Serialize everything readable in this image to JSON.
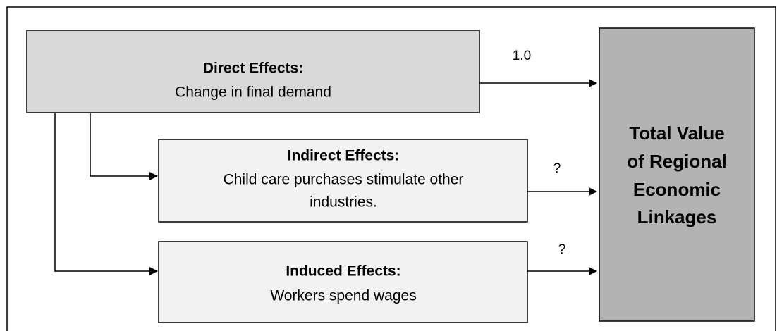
{
  "nodes": [
    {
      "title": "Direct Effects:",
      "lines": [
        "Change in final demand"
      ]
    },
    {
      "title": "Indirect Effects:",
      "lines": [
        "Child care purchases stimulate other",
        "industries."
      ]
    },
    {
      "title": "Induced Effects:",
      "lines": [
        "Workers spend wages"
      ]
    },
    {
      "lines": [
        "Total Value",
        "of Regional",
        "Economic",
        "Linkages"
      ]
    }
  ],
  "edges": [
    {
      "label": "1.0"
    },
    {
      "label": "?"
    },
    {
      "label": "?"
    }
  ]
}
